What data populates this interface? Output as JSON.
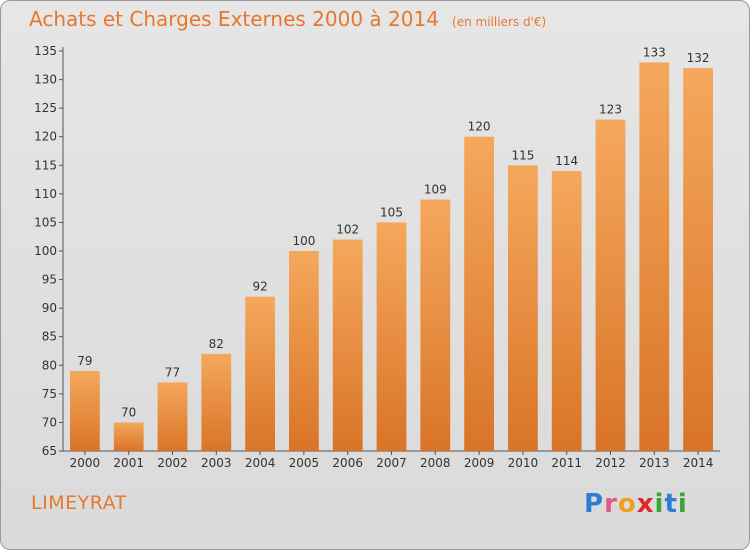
{
  "header": {
    "title": "Achats et Charges Externes 2000 à 2014",
    "unit": "(en milliers d'€)"
  },
  "footer": {
    "commune": "LIMEYRAT",
    "logo_letters": [
      "P",
      "r",
      "o",
      "x",
      "i",
      "t",
      "i"
    ],
    "logo_colors": [
      "#2a7fd4",
      "#e05a8a",
      "#f0a020",
      "#e02828",
      "#3aa63a",
      "#2a7fd4",
      "#3aa63a"
    ]
  },
  "colors": {
    "accent": "#e8772e",
    "bar_light": "#f5a85c",
    "bar_dark": "#d97427"
  },
  "chart_data": {
    "type": "bar",
    "title": "Achats et Charges Externes 2000 à 2014",
    "subtitle": "(en milliers d'€)",
    "categories": [
      "2000",
      "2001",
      "2002",
      "2003",
      "2004",
      "2005",
      "2006",
      "2007",
      "2008",
      "2009",
      "2010",
      "2011",
      "2012",
      "2013",
      "2014"
    ],
    "values": [
      79,
      70,
      77,
      82,
      92,
      100,
      102,
      105,
      109,
      120,
      115,
      114,
      123,
      133,
      132
    ],
    "ylim": [
      65,
      135
    ],
    "yticks": [
      65,
      70,
      75,
      80,
      85,
      90,
      95,
      100,
      105,
      110,
      115,
      120,
      125,
      130,
      135
    ],
    "grid": false,
    "data_labels": true
  }
}
